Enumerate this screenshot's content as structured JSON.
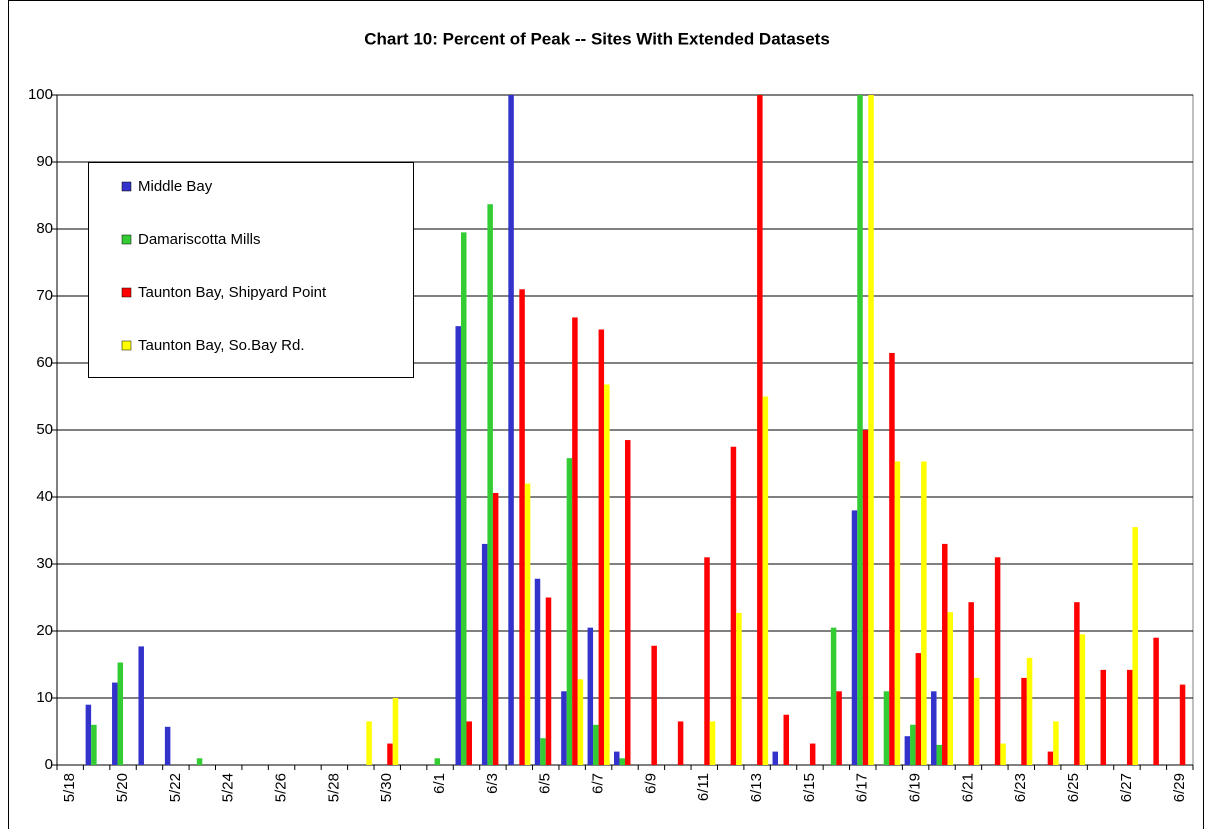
{
  "chart_data": {
    "type": "bar",
    "title": "Chart 10:  Percent of Peak -- Sites With Extended Datasets",
    "categories": [
      "5/18",
      null,
      "5/20",
      null,
      "5/22",
      null,
      "5/24",
      null,
      "5/26",
      null,
      "5/28",
      null,
      "5/30",
      null,
      "6/1",
      null,
      "6/3",
      null,
      "6/5",
      null,
      "6/7",
      null,
      "6/9",
      null,
      "6/11",
      null,
      "6/13",
      null,
      "6/15",
      null,
      "6/17",
      null,
      "6/19",
      null,
      "6/21",
      null,
      "6/23",
      null,
      "6/25",
      null,
      "6/27",
      null,
      "6/29"
    ],
    "series": [
      {
        "name": "Middle Bay",
        "color": "#3333cc",
        "values": [
          null,
          9,
          12.3,
          17.7,
          5.7,
          null,
          null,
          null,
          null,
          null,
          null,
          null,
          null,
          null,
          null,
          65.5,
          33,
          100,
          27.8,
          11,
          20.5,
          2,
          null,
          null,
          null,
          null,
          null,
          2,
          null,
          null,
          38,
          null,
          4.3,
          11,
          null,
          null,
          null,
          null,
          null,
          null,
          null,
          null,
          null
        ]
      },
      {
        "name": "Damariscotta Mills",
        "color": "#33cc33",
        "values": [
          null,
          6,
          15.3,
          null,
          null,
          1,
          null,
          null,
          null,
          null,
          null,
          null,
          null,
          null,
          1,
          79.5,
          83.7,
          null,
          4,
          45.8,
          6,
          1,
          null,
          null,
          null,
          null,
          null,
          null,
          null,
          20.5,
          100,
          11,
          6,
          3,
          null,
          null,
          null,
          null,
          null,
          null,
          null,
          null,
          null
        ]
      },
      {
        "name": "Taunton Bay, Shipyard Point",
        "color": "#ff0000",
        "values": [
          null,
          null,
          null,
          null,
          null,
          null,
          null,
          null,
          null,
          null,
          null,
          null,
          3.2,
          null,
          null,
          6.5,
          40.6,
          71,
          25,
          66.8,
          65,
          48.5,
          17.8,
          6.5,
          31,
          47.5,
          100,
          7.5,
          3.2,
          11,
          50,
          61.5,
          16.7,
          33,
          24.3,
          31,
          13,
          2,
          24.3,
          14.2,
          14.2,
          19,
          12
        ]
      },
      {
        "name": "Taunton Bay, So.Bay Rd.",
        "color": "#ffff00",
        "values": [
          null,
          null,
          null,
          null,
          null,
          null,
          null,
          null,
          null,
          null,
          null,
          6.5,
          10,
          null,
          null,
          null,
          null,
          42,
          null,
          12.8,
          56.8,
          null,
          null,
          null,
          6.5,
          22.7,
          55,
          null,
          null,
          null,
          100,
          45.3,
          45.3,
          22.8,
          13,
          3.2,
          16,
          6.5,
          19.5,
          null,
          35.5,
          null,
          null
        ]
      }
    ],
    "ylim": [
      0,
      100
    ],
    "yticks": [
      0,
      10,
      20,
      30,
      40,
      50,
      60,
      70,
      80,
      90,
      100
    ],
    "grid": true
  }
}
